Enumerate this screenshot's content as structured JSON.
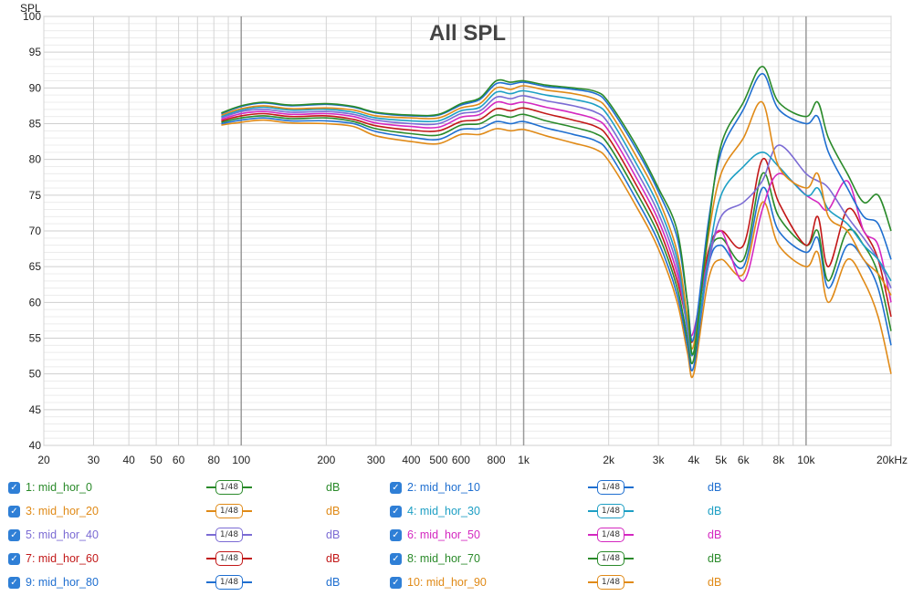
{
  "chart_data": {
    "type": "line",
    "title": "All SPL",
    "ylabel": "SPL",
    "x_scale": "log",
    "xlim": [
      20,
      20000
    ],
    "ylim": [
      40,
      100
    ],
    "y_ticks": [
      40,
      45,
      50,
      55,
      60,
      65,
      70,
      75,
      80,
      85,
      90,
      95,
      100
    ],
    "x_ticks": [
      {
        "v": 20,
        "label": "20"
      },
      {
        "v": 30,
        "label": "30"
      },
      {
        "v": 40,
        "label": "40"
      },
      {
        "v": 50,
        "label": "50"
      },
      {
        "v": 60,
        "label": "60"
      },
      {
        "v": 80,
        "label": "80"
      },
      {
        "v": 100,
        "label": "100"
      },
      {
        "v": 200,
        "label": "200"
      },
      {
        "v": 300,
        "label": "300"
      },
      {
        "v": 400,
        "label": "400"
      },
      {
        "v": 500,
        "label": "500"
      },
      {
        "v": 600,
        "label": "600"
      },
      {
        "v": 800,
        "label": "800"
      },
      {
        "v": 1000,
        "label": "1k"
      },
      {
        "v": 2000,
        "label": "2k"
      },
      {
        "v": 3000,
        "label": "3k"
      },
      {
        "v": 4000,
        "label": "4k"
      },
      {
        "v": 5000,
        "label": "5k"
      },
      {
        "v": 6000,
        "label": "6k"
      },
      {
        "v": 8000,
        "label": "8k"
      },
      {
        "v": 10000,
        "label": "10k"
      },
      {
        "v": 20000,
        "label": "20kHz"
      }
    ],
    "grid": true,
    "x": [
      85,
      100,
      120,
      150,
      200,
      250,
      300,
      400,
      500,
      600,
      700,
      800,
      900,
      1000,
      1200,
      1500,
      1800,
      2000,
      2500,
      3000,
      3500,
      3800,
      4000,
      4500,
      5000,
      6000,
      7000,
      8000,
      10000,
      11000,
      12000,
      14000,
      16000,
      18000,
      20000
    ],
    "series": [
      {
        "name": "1: mid_hor_0",
        "color": "#2a8a2a",
        "values": [
          86.5,
          87.5,
          88,
          87.6,
          87.8,
          87.4,
          86.6,
          86.2,
          86.3,
          87.8,
          88.6,
          91,
          90.8,
          91,
          90.4,
          90,
          89.5,
          88,
          82,
          76,
          70,
          60,
          53,
          70,
          82,
          88,
          93,
          88,
          86,
          88,
          83,
          78,
          74,
          75,
          70
        ]
      },
      {
        "name": "2: mid_hor_10",
        "color": "#1f6fd0",
        "values": [
          86.4,
          87.4,
          87.9,
          87.5,
          87.7,
          87.3,
          86.5,
          86.1,
          86.2,
          87.6,
          88.4,
          90.6,
          90.5,
          90.8,
          90.2,
          89.8,
          89.2,
          87.6,
          81.5,
          75.5,
          69,
          60,
          55,
          71,
          81,
          87,
          92,
          87,
          85,
          86,
          81,
          76,
          72,
          71,
          66
        ]
      },
      {
        "name": "3: mid_hor_20",
        "color": "#e08a17",
        "values": [
          86.2,
          87.1,
          87.5,
          87.1,
          87.2,
          86.9,
          86.1,
          85.8,
          85.8,
          87.2,
          87.8,
          90,
          89.8,
          90.3,
          89.7,
          89.2,
          88.4,
          86.8,
          80.5,
          74.5,
          67,
          58,
          54,
          69,
          78,
          83,
          88,
          79,
          76,
          78,
          72,
          70,
          66,
          64,
          61
        ]
      },
      {
        "name": "4: mid_hor_30",
        "color": "#1d9fc4",
        "values": [
          86,
          86.9,
          87.3,
          86.9,
          87,
          86.6,
          85.8,
          85.4,
          85.4,
          86.8,
          87.3,
          89.4,
          89.2,
          89.6,
          89,
          88.4,
          87.6,
          86,
          79.5,
          73.5,
          66,
          57,
          53,
          66,
          75,
          79,
          81,
          79,
          75,
          76,
          73,
          71,
          68,
          66,
          63
        ]
      },
      {
        "name": "5: mid_hor_40",
        "color": "#7b6bd4",
        "values": [
          85.8,
          86.7,
          87,
          86.6,
          86.7,
          86.3,
          85.5,
          85,
          85,
          86.4,
          86.8,
          88.7,
          88.5,
          88.9,
          88.2,
          87.5,
          86.6,
          85,
          78.5,
          72.5,
          65,
          56,
          53,
          65,
          72,
          74,
          77,
          82,
          78,
          77,
          76,
          72,
          69,
          66,
          62
        ]
      },
      {
        "name": "6: mid_hor_50",
        "color": "#d428c0",
        "values": [
          85.6,
          86.4,
          86.7,
          86.3,
          86.4,
          86,
          85.1,
          84.6,
          84.5,
          85.9,
          86.3,
          88,
          87.7,
          88,
          87.3,
          86.5,
          85.6,
          84,
          77.5,
          71.5,
          64,
          57,
          56,
          66,
          70,
          63,
          73,
          78,
          75,
          74,
          73,
          77,
          70,
          68,
          60
        ]
      },
      {
        "name": "7: mid_hor_60",
        "color": "#c21818",
        "values": [
          85.4,
          86.1,
          86.4,
          86,
          86.1,
          85.6,
          84.7,
          84.1,
          84,
          85.3,
          85.6,
          87.1,
          86.8,
          87.2,
          86.4,
          85.5,
          84.6,
          83,
          76.5,
          70.5,
          63,
          57,
          55,
          67,
          70,
          68,
          80,
          74,
          68,
          72,
          65,
          73,
          70,
          66,
          58
        ]
      },
      {
        "name": "8: mid_hor_70",
        "color": "#2a8a2a",
        "values": [
          85.2,
          85.8,
          86.1,
          85.7,
          85.8,
          85.3,
          84.3,
          83.6,
          83.4,
          84.8,
          85,
          86.2,
          85.9,
          86.3,
          85.4,
          84.5,
          83.6,
          82,
          75.5,
          69.5,
          62,
          55,
          52,
          66,
          69,
          66,
          78,
          72,
          68,
          70,
          63,
          70,
          68,
          64,
          56
        ]
      },
      {
        "name": "9: mid_hor_80",
        "color": "#1f6fd0",
        "values": [
          85,
          85.5,
          85.8,
          85.4,
          85.4,
          85,
          83.9,
          83.1,
          82.8,
          84.2,
          84.3,
          85.3,
          85,
          85.3,
          84.4,
          83.5,
          82.6,
          81,
          74.5,
          68.5,
          61,
          54,
          51,
          65,
          68,
          65,
          76,
          70,
          67,
          69,
          62,
          68,
          66,
          62,
          54
        ]
      },
      {
        "name": "10: mid_hor_90",
        "color": "#e08a17",
        "values": [
          84.8,
          85.2,
          85.5,
          85.1,
          85,
          84.6,
          83.3,
          82.5,
          82.2,
          83.5,
          83.5,
          84.3,
          84,
          84.2,
          83.3,
          82.3,
          81.4,
          79.8,
          73.5,
          67.5,
          60,
          53,
          50,
          63,
          66,
          64,
          74,
          68,
          65,
          67,
          60,
          66,
          63,
          58,
          50
        ]
      }
    ]
  },
  "legend": {
    "items": [
      {
        "label": "1: mid_hor_0",
        "color": "#2a8a2a",
        "smoothing": "1/48",
        "unit": "dB"
      },
      {
        "label": "2: mid_hor_10",
        "color": "#1f6fd0",
        "smoothing": "1/48",
        "unit": "dB"
      },
      {
        "label": "3: mid_hor_20",
        "color": "#e08a17",
        "smoothing": "1/48",
        "unit": "dB"
      },
      {
        "label": "4: mid_hor_30",
        "color": "#1d9fc4",
        "smoothing": "1/48",
        "unit": "dB"
      },
      {
        "label": "5: mid_hor_40",
        "color": "#7b6bd4",
        "smoothing": "1/48",
        "unit": "dB"
      },
      {
        "label": "6: mid_hor_50",
        "color": "#d428c0",
        "smoothing": "1/48",
        "unit": "dB"
      },
      {
        "label": "7: mid_hor_60",
        "color": "#c21818",
        "smoothing": "1/48",
        "unit": "dB"
      },
      {
        "label": "8: mid_hor_70",
        "color": "#2a8a2a",
        "smoothing": "1/48",
        "unit": "dB"
      },
      {
        "label": "9: mid_hor_80",
        "color": "#1f6fd0",
        "smoothing": "1/48",
        "unit": "dB"
      },
      {
        "label": "10: mid_hor_90",
        "color": "#e08a17",
        "smoothing": "1/48",
        "unit": "dB"
      }
    ]
  }
}
